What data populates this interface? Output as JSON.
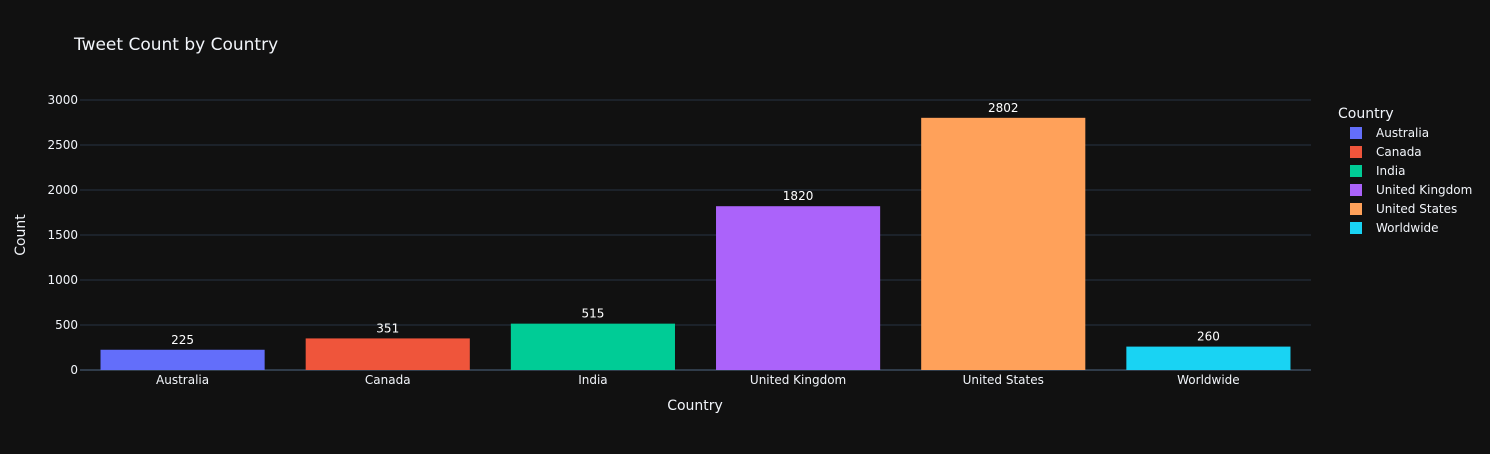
{
  "chart_data": {
    "type": "bar",
    "title": "Tweet Count by Country",
    "xlabel": "Country",
    "ylabel": "Count",
    "categories": [
      "Australia",
      "Canada",
      "India",
      "United Kingdom",
      "United States",
      "Worldwide"
    ],
    "values": [
      225,
      351,
      515,
      1820,
      2802,
      260
    ],
    "colors": [
      "#636efa",
      "#ef553b",
      "#00cc96",
      "#ab63fa",
      "#ffa15a",
      "#19d3f3"
    ],
    "ylim": [
      0,
      3000
    ],
    "yticks": [
      0,
      500,
      1000,
      1500,
      2000,
      2500,
      3000
    ],
    "grid": true,
    "legend": {
      "title": "Country",
      "placement": "right",
      "entries": [
        "Australia",
        "Canada",
        "India",
        "United Kingdom",
        "United States",
        "Worldwide"
      ]
    },
    "background": "#111111",
    "grid_color": "#283442"
  }
}
